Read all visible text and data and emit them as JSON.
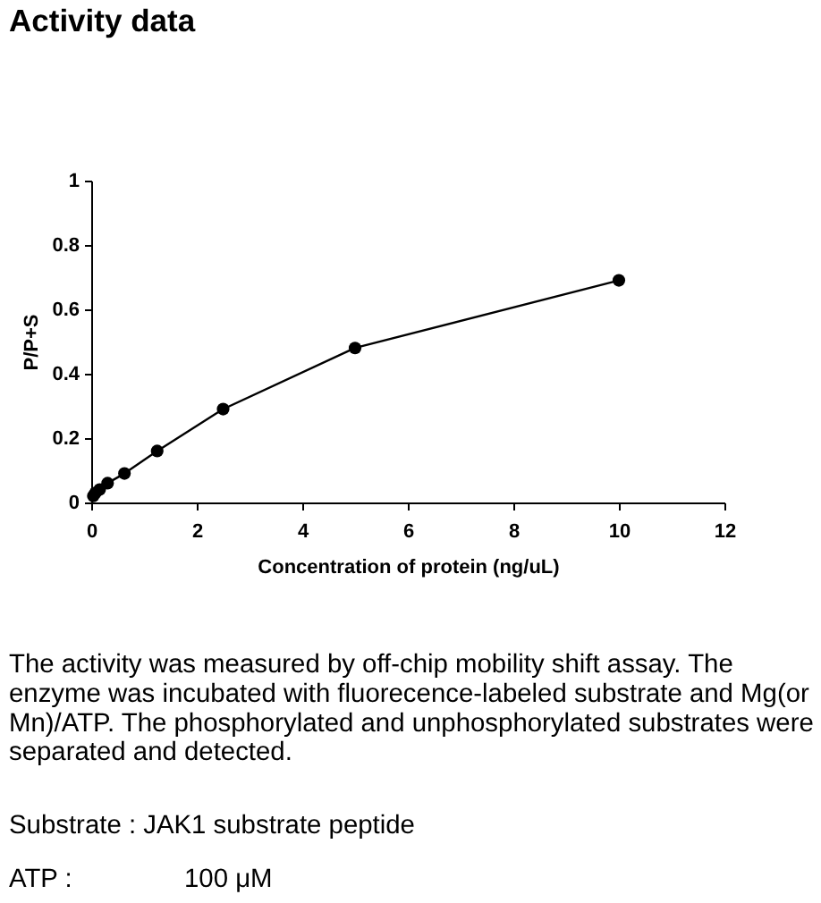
{
  "chart_data": {
    "type": "line",
    "title": "Activity data",
    "xlabel": "Concentration of protein (ng/uL)",
    "ylabel": "P/P+S",
    "x": [
      0.04,
      0.08,
      0.16,
      0.31,
      0.63,
      1.25,
      2.5,
      5,
      10
    ],
    "series": [
      {
        "color": "#000000",
        "values": [
          0.02,
          0.03,
          0.04,
          0.06,
          0.09,
          0.16,
          0.29,
          0.48,
          0.69
        ]
      }
    ],
    "xlim": [
      0,
      12
    ],
    "xticks": [
      0,
      2,
      4,
      6,
      8,
      10,
      12
    ],
    "ylim": [
      0,
      1
    ],
    "yticks": [
      0,
      0.2,
      0.4,
      0.6,
      0.8,
      1
    ],
    "grid": false,
    "marker": "circle",
    "line_style": "solid",
    "annotations": [
      "The activity was measured by off-chip mobility shift assay. The enzyme was incubated with fluorecence-labeled  substrate and Mg(or Mn)/ATP. The phosphorylated and unphosphorylated substrates were separated and detected.",
      "Substrate : JAK1 substrate peptide",
      "ATP :",
      "100 μM"
    ]
  }
}
